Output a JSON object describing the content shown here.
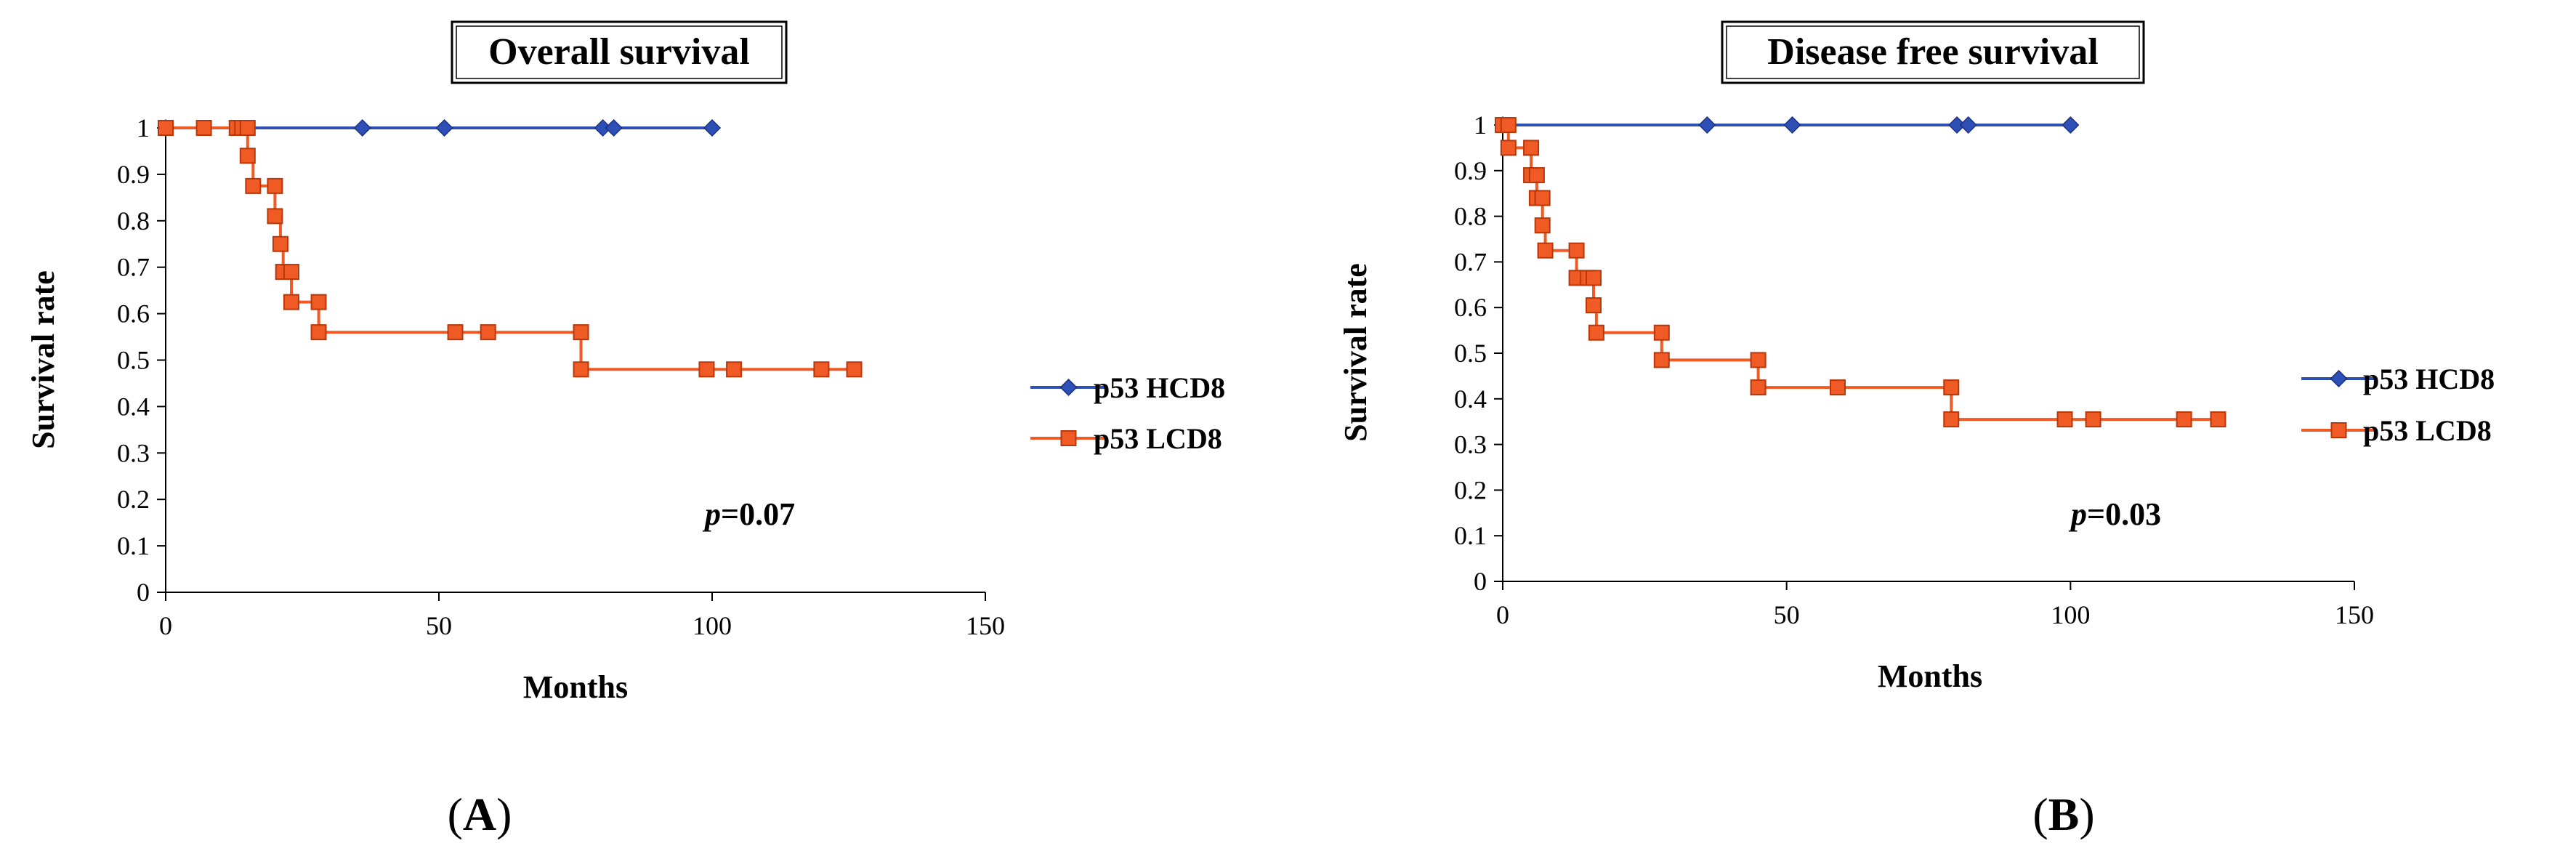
{
  "chart_data": [
    {
      "type": "line",
      "subtype": "kaplan-meier step",
      "panel_label": "A",
      "panel_label_parts": [
        "(",
        "A",
        ")"
      ],
      "title": "Overall survival",
      "xlabel": "Months",
      "ylabel": "Survival rate",
      "xlim": [
        0,
        150
      ],
      "ylim": [
        0,
        1
      ],
      "xticks": [
        0,
        50,
        100,
        150
      ],
      "xtick_labels": [
        "0",
        "50",
        "100",
        "150"
      ],
      "yticks": [
        0,
        0.1,
        0.2,
        0.3,
        0.4,
        0.5,
        0.6,
        0.7,
        0.8,
        0.9,
        1
      ],
      "ytick_labels": [
        "0",
        "0.1",
        "0.2",
        "0.3",
        "0.4",
        "0.5",
        "0.6",
        "0.7",
        "0.8",
        "0.9",
        "1"
      ],
      "grid": false,
      "legend_position": "right",
      "annotation": {
        "prefix": "p",
        "text": "=0.07"
      },
      "series": [
        {
          "name": "p53 HCD8",
          "color": "#2E4FB5",
          "marker": "diamond",
          "steps": [
            [
              0,
              1
            ],
            [
              100,
              1
            ]
          ],
          "markers": [
            [
              0,
              1
            ],
            [
              36,
              1
            ],
            [
              51,
              1
            ],
            [
              80,
              1
            ],
            [
              82,
              1
            ],
            [
              100,
              1
            ]
          ]
        },
        {
          "name": "p53 LCD8",
          "color": "#F05A24",
          "marker": "square",
          "steps": [
            [
              0,
              1
            ],
            [
              15,
              1
            ],
            [
              15,
              0.94
            ],
            [
              16,
              0.94
            ],
            [
              16,
              0.875
            ],
            [
              20,
              0.875
            ],
            [
              20,
              0.81
            ],
            [
              21,
              0.81
            ],
            [
              21,
              0.75
            ],
            [
              21.5,
              0.75
            ],
            [
              21.5,
              0.69
            ],
            [
              23,
              0.69
            ],
            [
              23,
              0.625
            ],
            [
              28,
              0.625
            ],
            [
              28,
              0.56
            ],
            [
              76,
              0.56
            ],
            [
              76,
              0.48
            ],
            [
              126,
              0.48
            ]
          ],
          "markers": [
            [
              0,
              1
            ],
            [
              7,
              1
            ],
            [
              13,
              1
            ],
            [
              14,
              1
            ],
            [
              15,
              1
            ],
            [
              15,
              0.94
            ],
            [
              16,
              0.875
            ],
            [
              20,
              0.875
            ],
            [
              20,
              0.81
            ],
            [
              21,
              0.75
            ],
            [
              21.5,
              0.69
            ],
            [
              23,
              0.69
            ],
            [
              23,
              0.625
            ],
            [
              28,
              0.625
            ],
            [
              28,
              0.56
            ],
            [
              53,
              0.56
            ],
            [
              59,
              0.56
            ],
            [
              76,
              0.56
            ],
            [
              76,
              0.48
            ],
            [
              99,
              0.48
            ],
            [
              104,
              0.48
            ],
            [
              120,
              0.48
            ],
            [
              126,
              0.48
            ]
          ]
        }
      ]
    },
    {
      "type": "line",
      "subtype": "kaplan-meier step",
      "panel_label": "B",
      "panel_label_parts": [
        "(",
        "B",
        ")"
      ],
      "title": "Disease free survival",
      "xlabel": "Months",
      "ylabel": "Survival rate",
      "xlim": [
        0,
        150
      ],
      "ylim": [
        0,
        1
      ],
      "xticks": [
        0,
        50,
        100,
        150
      ],
      "xtick_labels": [
        "0",
        "50",
        "100",
        "150"
      ],
      "yticks": [
        0,
        0.1,
        0.2,
        0.3,
        0.4,
        0.5,
        0.6,
        0.7,
        0.8,
        0.9,
        1
      ],
      "ytick_labels": [
        "0",
        "0.1",
        "0.2",
        "0.3",
        "0.4",
        "0.5",
        "0.6",
        "0.7",
        "0.8",
        "0.9",
        "1"
      ],
      "grid": false,
      "legend_position": "right",
      "annotation": {
        "prefix": "p",
        "text": "=0.03"
      },
      "series": [
        {
          "name": "p53 HCD8",
          "color": "#2E4FB5",
          "marker": "diamond",
          "steps": [
            [
              0,
              1
            ],
            [
              100,
              1
            ]
          ],
          "markers": [
            [
              0,
              1
            ],
            [
              36,
              1
            ],
            [
              51,
              1
            ],
            [
              80,
              1
            ],
            [
              82,
              1
            ],
            [
              100,
              1
            ]
          ]
        },
        {
          "name": "p53 LCD8",
          "color": "#F05A24",
          "marker": "square",
          "steps": [
            [
              0,
              1
            ],
            [
              1,
              1
            ],
            [
              1,
              0.95
            ],
            [
              5,
              0.95
            ],
            [
              5,
              0.89
            ],
            [
              6,
              0.89
            ],
            [
              6,
              0.84
            ],
            [
              7,
              0.84
            ],
            [
              7,
              0.78
            ],
            [
              7.5,
              0.78
            ],
            [
              7.5,
              0.725
            ],
            [
              13,
              0.725
            ],
            [
              13,
              0.665
            ],
            [
              16,
              0.665
            ],
            [
              16,
              0.605
            ],
            [
              16.5,
              0.605
            ],
            [
              16.5,
              0.545
            ],
            [
              28,
              0.545
            ],
            [
              28,
              0.485
            ],
            [
              45,
              0.485
            ],
            [
              45,
              0.425
            ],
            [
              79,
              0.425
            ],
            [
              79,
              0.355
            ],
            [
              126,
              0.355
            ]
          ],
          "markers": [
            [
              0,
              1
            ],
            [
              1,
              1
            ],
            [
              1,
              0.95
            ],
            [
              5,
              0.95
            ],
            [
              5,
              0.89
            ],
            [
              6,
              0.89
            ],
            [
              6,
              0.84
            ],
            [
              7,
              0.84
            ],
            [
              7,
              0.78
            ],
            [
              7.5,
              0.725
            ],
            [
              13,
              0.725
            ],
            [
              13,
              0.665
            ],
            [
              15,
              0.665
            ],
            [
              16,
              0.665
            ],
            [
              16,
              0.605
            ],
            [
              16.5,
              0.545
            ],
            [
              28,
              0.545
            ],
            [
              28,
              0.485
            ],
            [
              45,
              0.485
            ],
            [
              45,
              0.425
            ],
            [
              59,
              0.425
            ],
            [
              79,
              0.425
            ],
            [
              79,
              0.355
            ],
            [
              99,
              0.355
            ],
            [
              104,
              0.355
            ],
            [
              120,
              0.355
            ],
            [
              126,
              0.355
            ]
          ]
        }
      ]
    }
  ]
}
